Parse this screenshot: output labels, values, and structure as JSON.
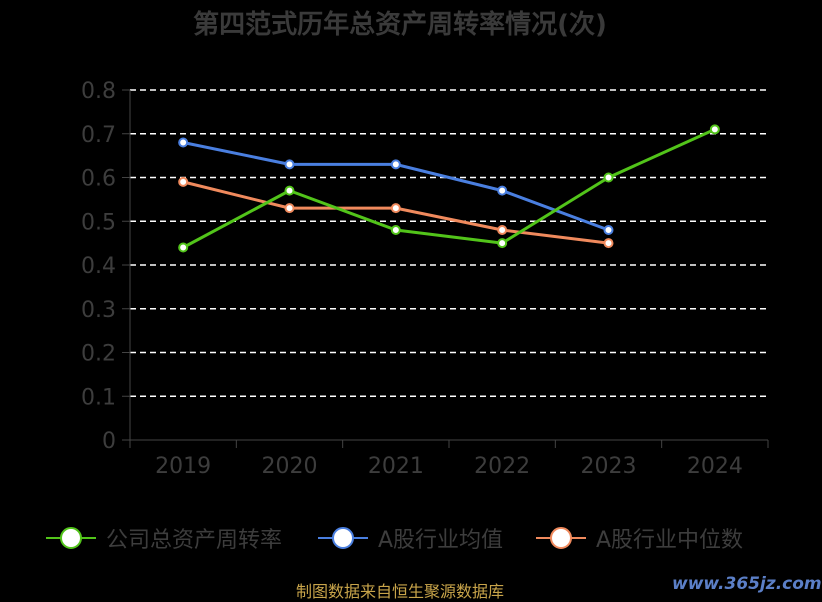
{
  "chart_data": {
    "type": "line",
    "title": "第四范式历年总资产周转率情况(次)",
    "categories": [
      "2019",
      "2020",
      "2021",
      "2022",
      "2023",
      "2024"
    ],
    "ylim": [
      0,
      0.8
    ],
    "yticks": [
      "0",
      "0.1",
      "0.2",
      "0.3",
      "0.4",
      "0.5",
      "0.6",
      "0.7",
      "0.8"
    ],
    "grid": true,
    "legend_position": "bottom",
    "series": [
      {
        "name": "公司总资产周转率",
        "color": "#52c41a",
        "values": [
          0.44,
          0.57,
          0.48,
          0.45,
          0.6,
          0.71
        ]
      },
      {
        "name": "A股行业均值",
        "color": "#4a7fe0",
        "values": [
          0.68,
          0.63,
          0.63,
          0.57,
          0.48,
          null
        ]
      },
      {
        "name": "A股行业中位数",
        "color": "#f08a5d",
        "values": [
          0.59,
          0.53,
          0.53,
          0.48,
          0.45,
          null
        ]
      }
    ]
  },
  "source_note": "制图数据来自恒生聚源数据库",
  "watermark": "www.365jz.com"
}
